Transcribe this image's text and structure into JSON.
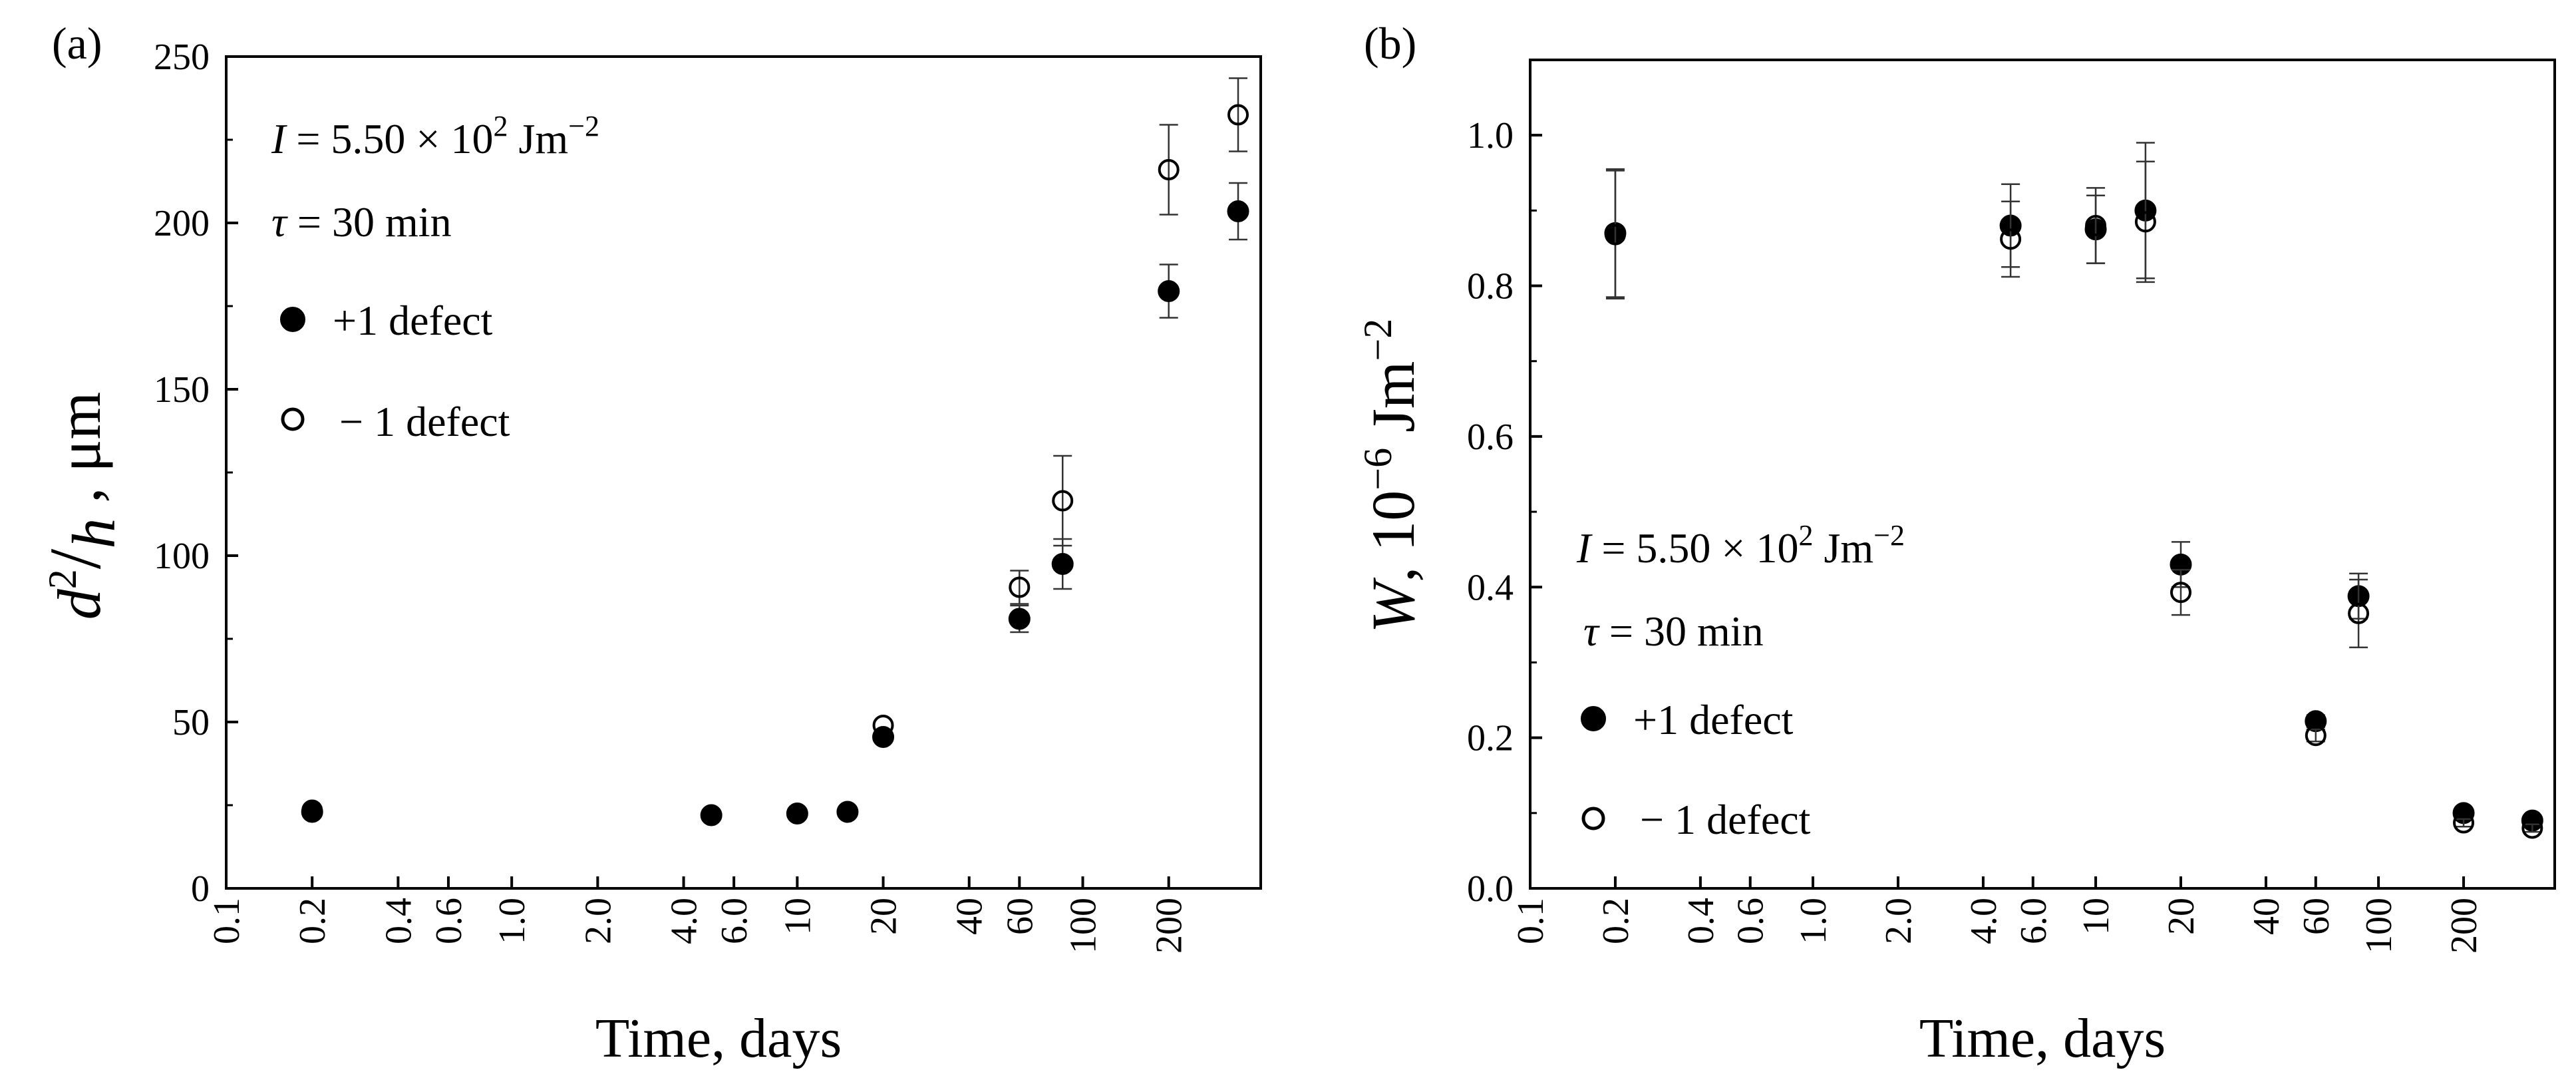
{
  "chart_data": [
    {
      "type": "scatter",
      "panel_label": "(a)",
      "xscale": "log",
      "xlim": [
        0.1,
        420
      ],
      "ylim": [
        0,
        250
      ],
      "xticks": [
        0.1,
        0.2,
        0.4,
        0.6,
        1.0,
        2.0,
        4.0,
        6.0,
        10,
        20,
        40,
        60,
        100,
        200
      ],
      "xtick_labels": [
        "0.1",
        "0.2",
        "0.4",
        "0.6",
        "1.0",
        "2.0",
        "4.0",
        "6.0",
        "10",
        "20",
        "40",
        "60",
        "100",
        "200"
      ],
      "yticks": [
        0,
        50,
        100,
        150,
        200,
        250
      ],
      "ytick_labels": [
        "0",
        "50",
        "100",
        "150",
        "200",
        "250"
      ],
      "xlabel": "Time, days",
      "ylabel": "d²/h , μm",
      "annotations": [
        "I =  5.50 × 10² Jm⁻²",
        "τ = 30 min"
      ],
      "series": [
        {
          "name": "+1 defect",
          "marker": "filled-circle",
          "points": [
            {
              "x": 0.2,
              "y": 23,
              "err": 0
            },
            {
              "x": 5,
              "y": 22,
              "err": 0
            },
            {
              "x": 10,
              "y": 22.5,
              "err": 0
            },
            {
              "x": 15,
              "y": 23,
              "err": 0
            },
            {
              "x": 20,
              "y": 45.5,
              "err": 0
            },
            {
              "x": 60,
              "y": 81,
              "err": 4
            },
            {
              "x": 85,
              "y": 97.5,
              "err": 7.5
            },
            {
              "x": 200,
              "y": 179.5,
              "err": 8
            },
            {
              "x": 350,
              "y": 203.5,
              "err": 8.5
            }
          ]
        },
        {
          "name": "− 1 defect",
          "marker": "open-circle",
          "points": [
            {
              "x": 0.2,
              "y": 23.5,
              "err": 0
            },
            {
              "x": 5,
              "y": 22,
              "err": 0
            },
            {
              "x": 10,
              "y": 22.5,
              "err": 0
            },
            {
              "x": 15,
              "y": 23,
              "err": 0
            },
            {
              "x": 20,
              "y": 49,
              "err": 0
            },
            {
              "x": 60,
              "y": 90.5,
              "err": 5
            },
            {
              "x": 85,
              "y": 116.5,
              "err": 13.5
            },
            {
              "x": 200,
              "y": 216,
              "err": 13.5
            },
            {
              "x": 350,
              "y": 232.5,
              "err": 11
            }
          ]
        }
      ]
    },
    {
      "type": "scatter",
      "panel_label": "(b)",
      "xscale": "log",
      "xlim": [
        0.1,
        420
      ],
      "ylim": [
        0,
        1.1
      ],
      "xticks": [
        0.1,
        0.2,
        0.4,
        0.6,
        1.0,
        2.0,
        4.0,
        6.0,
        10,
        20,
        40,
        60,
        100,
        200
      ],
      "xtick_labels": [
        "0.1",
        "0.2",
        "0.4",
        "0.6",
        "1.0",
        "2.0",
        "4.0",
        "6.0",
        "10",
        "20",
        "40",
        "60",
        "100",
        "200"
      ],
      "yticks": [
        0,
        0.2,
        0.4,
        0.6,
        0.8,
        1.0
      ],
      "ytick_labels": [
        "0.0",
        "0.2",
        "0.4",
        "0.6",
        "0.8",
        "1.0"
      ],
      "xlabel": "Time, days",
      "ylabel": "W, 10⁻⁶ Jm⁻²",
      "annotations": [
        "I =  5.50 × 10² Jm⁻²",
        "τ = 30 min"
      ],
      "series": [
        {
          "name": "+1 defect",
          "marker": "filled-circle",
          "points": [
            {
              "x": 0.2,
              "y": 0.87,
              "err": 0.085
            },
            {
              "x": 5,
              "y": 0.88,
              "err": 0.055
            },
            {
              "x": 10,
              "y": 0.875,
              "err": 0.045
            },
            {
              "x": 15,
              "y": 0.9,
              "err": 0.09
            },
            {
              "x": 20,
              "y": 0.43,
              "err": 0.03
            },
            {
              "x": 60,
              "y": 0.222,
              "err": 0.008
            },
            {
              "x": 85,
              "y": 0.388,
              "err": 0.03
            },
            {
              "x": 200,
              "y": 0.1,
              "err": 0.005
            },
            {
              "x": 350,
              "y": 0.09,
              "err": 0.005
            }
          ]
        },
        {
          "name": "− 1 defect",
          "marker": "open-circle",
          "points": [
            {
              "x": 0.2,
              "y": 0.868,
              "err": 0.085
            },
            {
              "x": 5,
              "y": 0.862,
              "err": 0.05
            },
            {
              "x": 10,
              "y": 0.88,
              "err": 0.05
            },
            {
              "x": 15,
              "y": 0.885,
              "err": 0.08
            },
            {
              "x": 20,
              "y": 0.393,
              "err": 0.03
            },
            {
              "x": 60,
              "y": 0.203,
              "err": 0.008
            },
            {
              "x": 85,
              "y": 0.365,
              "err": 0.045
            },
            {
              "x": 200,
              "y": 0.087,
              "err": 0.005
            },
            {
              "x": 350,
              "y": 0.08,
              "err": 0.005
            }
          ]
        }
      ]
    }
  ]
}
